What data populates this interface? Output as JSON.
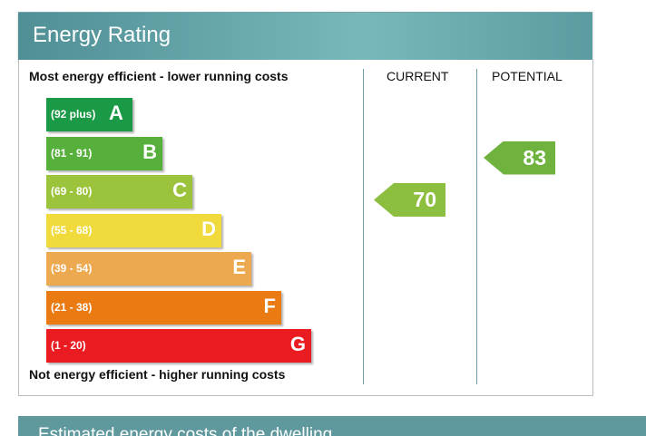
{
  "header": {
    "title": "Energy Rating"
  },
  "footer": {
    "title": "Estimated energy costs of the dwelling"
  },
  "chart_data": {
    "type": "bar",
    "title": "Energy Rating",
    "top_label": "Most energy efficient - lower running costs",
    "bottom_label": "Not energy efficient - higher running costs",
    "columns": [
      "CURRENT",
      "POTENTIAL"
    ],
    "bands": [
      {
        "letter": "A",
        "range": "(92 plus)",
        "color": "#1a9a46"
      },
      {
        "letter": "B",
        "range": "(81 - 91)",
        "color": "#56b03b"
      },
      {
        "letter": "C",
        "range": "(69 - 80)",
        "color": "#9bc33b"
      },
      {
        "letter": "D",
        "range": "(55 - 68)",
        "color": "#f1da3c"
      },
      {
        "letter": "E",
        "range": "(39 - 54)",
        "color": "#eda94f"
      },
      {
        "letter": "F",
        "range": "(21 - 38)",
        "color": "#ea7a12"
      },
      {
        "letter": "G",
        "range": "(1 - 20)",
        "color": "#ea1c22"
      }
    ],
    "current": {
      "value": 70,
      "band": "C",
      "color": "#8cbe3f"
    },
    "potential": {
      "value": 83,
      "band": "B",
      "color": "#6fb23e"
    }
  }
}
